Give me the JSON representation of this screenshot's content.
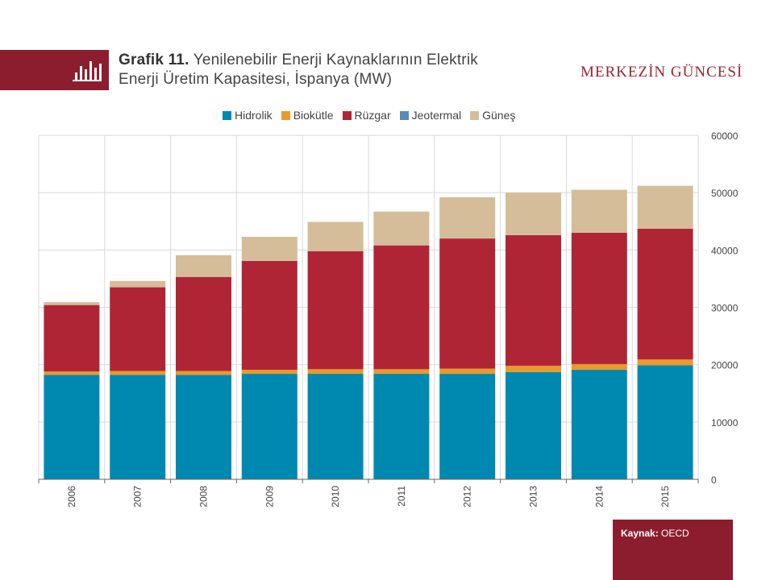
{
  "header": {
    "title_prefix": "Grafik 11.",
    "title_rest": "Yenilenebilir Enerji Kaynaklarının Elektrik",
    "title_line2": "Enerji Üretim Kapasitesi, İspanya (MW)",
    "brand": "MERKEZİN GÜNCESİ",
    "icon": "bar-chart-icon"
  },
  "source": {
    "label": "Kaynak:",
    "value": "OECD"
  },
  "colors": {
    "brand": "#8c1d2e",
    "Hidrolik": "#0089b0",
    "Biokütle": "#e89a2c",
    "Rüzgar": "#b02536",
    "Jeotermal": "#5b8ab5",
    "Güneş": "#d4bd98"
  },
  "chart_data": {
    "type": "bar",
    "stacked": true,
    "categories": [
      "2006",
      "2007",
      "2008",
      "2009",
      "2010",
      "2011",
      "2012",
      "2013",
      "2014",
      "2015"
    ],
    "series": [
      {
        "name": "Hidrolik",
        "values": [
          18200,
          18200,
          18200,
          18400,
          18400,
          18400,
          18400,
          18700,
          19100,
          19900
        ]
      },
      {
        "name": "Biokütle",
        "values": [
          600,
          700,
          700,
          700,
          800,
          800,
          900,
          1100,
          1000,
          1000
        ]
      },
      {
        "name": "Rüzgar",
        "values": [
          11600,
          14600,
          16400,
          19000,
          20600,
          21600,
          22700,
          22800,
          22900,
          22800
        ]
      },
      {
        "name": "Jeotermal",
        "values": [
          0,
          0,
          0,
          0,
          0,
          0,
          0,
          0,
          0,
          0
        ]
      },
      {
        "name": "Güneş",
        "values": [
          500,
          1100,
          3800,
          4200,
          5100,
          5900,
          7200,
          7400,
          7500,
          7500
        ]
      }
    ],
    "ylim": [
      0,
      60000
    ],
    "yticks": [
      0,
      10000,
      20000,
      30000,
      40000,
      50000,
      60000
    ],
    "y_axis_side": "right",
    "grid": true,
    "legend_position": "top",
    "xlabel": "",
    "ylabel": ""
  }
}
